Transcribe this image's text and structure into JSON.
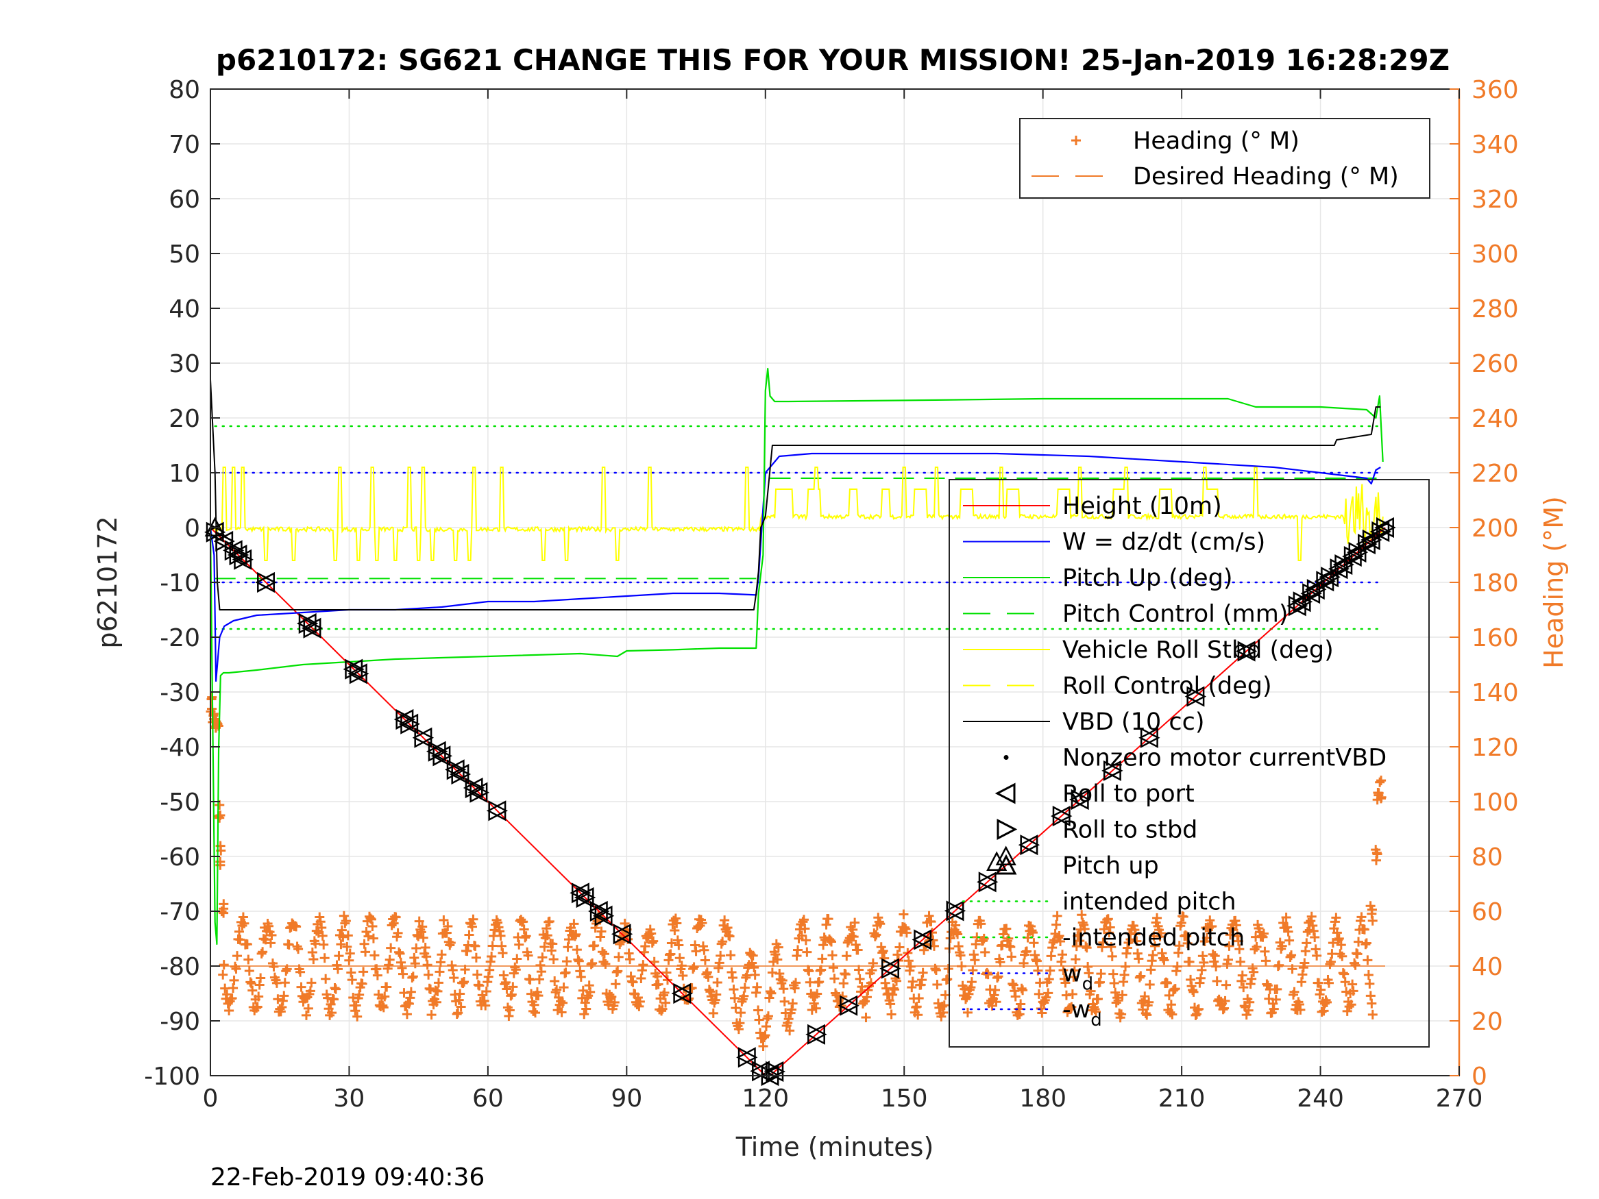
{
  "page": {
    "title": "p6210172: SG621 CHANGE THIS FOR YOUR MISSION! 25-Jan-2019 16:28:29Z",
    "timestamp": "22-Feb-2019 09:40:36"
  },
  "chart_data": {
    "type": "line",
    "title": "p6210172: SG621 CHANGE THIS FOR YOUR MISSION! 25-Jan-2019 16:28:29Z",
    "xlabel": "Time (minutes)",
    "ylabel": "p6210172",
    "y2label": "Heading (°M)",
    "xlim": [
      0,
      270
    ],
    "ylim": [
      -100,
      80
    ],
    "y2lim": [
      0,
      360
    ],
    "xticks": [
      "0",
      "30",
      "60",
      "90",
      "120",
      "150",
      "180",
      "210",
      "240",
      "270"
    ],
    "yticks": [
      "-100",
      "-90",
      "-80",
      "-70",
      "-60",
      "-50",
      "-40",
      "-30",
      "-20",
      "-10",
      "0",
      "10",
      "20",
      "30",
      "40",
      "50",
      "60",
      "70",
      "80"
    ],
    "y2ticks": [
      "0",
      "20",
      "40",
      "60",
      "80",
      "100",
      "120",
      "140",
      "160",
      "180",
      "200",
      "220",
      "240",
      "260",
      "280",
      "300",
      "320",
      "340",
      "360"
    ],
    "grid": true,
    "colors": {
      "height": "#ff0000",
      "w": "#0000ff",
      "pitch": "#00e000",
      "roll": "#ffff00",
      "vbd": "#000000",
      "heading": "#f07a28"
    },
    "legend_main": {
      "placement": "center-right",
      "entries": [
        {
          "label": "Height (10m)",
          "style": "line",
          "color": "#ff0000"
        },
        {
          "label": "W = dz/dt (cm/s)",
          "style": "line",
          "color": "#0000ff"
        },
        {
          "label": "Pitch Up (deg)",
          "style": "line",
          "color": "#00e000"
        },
        {
          "label": "Pitch Control (mm)",
          "style": "dash",
          "color": "#00e000"
        },
        {
          "label": "Vehicle Roll Stbd (deg)",
          "style": "line",
          "color": "#ffff00"
        },
        {
          "label": "Roll Control (deg)",
          "style": "dash",
          "color": "#ffff00"
        },
        {
          "label": "VBD (10 cc)",
          "style": "line",
          "color": "#000000"
        },
        {
          "label": "Nonzero motor currentVBD",
          "style": "dot",
          "color": "#000000"
        },
        {
          "label": "Roll to port",
          "style": "tri-left",
          "color": "#000000"
        },
        {
          "label": "Roll to stbd",
          "style": "tri-right",
          "color": "#000000"
        },
        {
          "label": "Pitch up",
          "style": "tri-up",
          "color": "#000000"
        },
        {
          "label": "intended pitch",
          "style": "dotted",
          "color": "#00e000"
        },
        {
          "label": "-intended pitch",
          "style": "dotted",
          "color": "#00e000"
        },
        {
          "label": "w",
          "sub": "d",
          "style": "dotted",
          "color": "#0000ff"
        },
        {
          "label": "-w",
          "sub": "d",
          "style": "dotted",
          "color": "#0000ff"
        }
      ]
    },
    "legend_heading": {
      "placement": "top-right",
      "entries": [
        {
          "label": "Heading (° M)",
          "style": "plus",
          "color": "#f07a28"
        },
        {
          "label": "Desired Heading (° M)",
          "style": "dash",
          "color": "#f07a28"
        }
      ]
    },
    "reference_lines": {
      "intended_pitch": 18.5,
      "neg_intended_pitch": -18.5,
      "wd": 10,
      "neg_wd": -10,
      "desired_heading_deg": 40,
      "x_range": [
        1,
        253
      ]
    },
    "series": [
      {
        "key": "height",
        "name": "Height (10m)",
        "x": [
          0,
          120,
          121,
          254
        ],
        "y": [
          0,
          -100,
          -100,
          0
        ]
      },
      {
        "key": "w",
        "name": "W = dz/dt (cm/s)",
        "x": [
          0,
          0.8,
          1.2,
          2,
          3,
          5,
          10,
          20,
          30,
          40,
          50,
          60,
          70,
          80,
          90,
          100,
          110,
          118,
          118.5,
          120,
          123,
          130,
          150,
          170,
          190,
          210,
          230,
          240,
          250,
          251,
          252,
          253
        ],
        "y": [
          0,
          -5,
          -28,
          -20,
          -18,
          -17,
          -16,
          -15.5,
          -15,
          -15,
          -14.5,
          -13.5,
          -13.5,
          -13,
          -12.5,
          -12,
          -12,
          -12.3,
          -9,
          10,
          13,
          13.5,
          13.5,
          13.5,
          13,
          12,
          11,
          10,
          9,
          8,
          10.5,
          11
        ]
      },
      {
        "key": "pitch",
        "name": "Pitch Up (deg)",
        "x": [
          0,
          1,
          1.4,
          1.8,
          2.2,
          2.8,
          4,
          10,
          20,
          40,
          60,
          80,
          88,
          90,
          100,
          110,
          118,
          118.5,
          119.5,
          120,
          120.5,
          121,
          122,
          125,
          150,
          180,
          220,
          226,
          240,
          250,
          252,
          252.8,
          253.5
        ],
        "y": [
          0,
          -72,
          -76,
          -40,
          -27,
          -26.5,
          -26.5,
          -26,
          -25,
          -24,
          -23.5,
          -23,
          -23.5,
          -22.5,
          -22.3,
          -22,
          -22,
          -12,
          -5,
          25,
          29,
          24,
          23,
          23,
          23.2,
          23.5,
          23.5,
          22,
          22,
          21.5,
          20,
          24,
          12
        ]
      },
      {
        "key": "vbd",
        "name": "VBD (10 cc)",
        "x": [
          0,
          1,
          1.5,
          2,
          10,
          30,
          60,
          90,
          117.5,
          118,
          118.5,
          119,
          120,
          121.5,
          150,
          190,
          230,
          243,
          243.5,
          251,
          252,
          253
        ],
        "y": [
          27,
          10,
          -10,
          -15,
          -15,
          -15,
          -15,
          -15,
          -15,
          -12,
          -8,
          0,
          2,
          15,
          15,
          15,
          15,
          15,
          16,
          17,
          22,
          22
        ]
      }
    ],
    "roll_control_levels": {
      "dive": -10,
      "climb": 9
    },
    "heading_profile": {
      "mean_deg": 40,
      "oscillation_amplitude_deg": 15,
      "oscillation_period_min": 5.5,
      "x_start": 0.5,
      "x_end": 253.5,
      "surface_cluster_start": [
        [
          0.3,
          135
        ],
        [
          0.6,
          132
        ],
        [
          1,
          130
        ],
        [
          1.5,
          128
        ],
        [
          2,
          95
        ],
        [
          2.3,
          80
        ],
        [
          2.6,
          60
        ]
      ],
      "surface_cluster_end": [
        [
          251,
          60
        ],
        [
          252,
          80
        ],
        [
          252.5,
          100
        ],
        [
          253,
          105
        ]
      ]
    },
    "markers": {
      "roll_pairs_x": [
        1,
        3,
        5,
        6,
        7,
        12,
        21,
        22,
        31,
        32,
        42,
        43,
        46,
        49,
        50,
        53,
        54,
        57,
        58,
        62,
        80,
        81,
        84,
        85,
        89,
        102,
        116,
        119,
        121,
        122,
        131,
        138,
        147,
        154,
        161,
        168,
        177,
        184,
        188,
        195,
        203,
        213,
        224,
        235,
        236,
        238,
        239,
        241,
        242,
        244,
        245,
        247,
        248,
        250,
        251,
        253,
        254
      ],
      "pitch_up": [
        [
          1,
          0
        ],
        [
          170,
          -61
        ],
        [
          172,
          -60
        ]
      ]
    }
  }
}
